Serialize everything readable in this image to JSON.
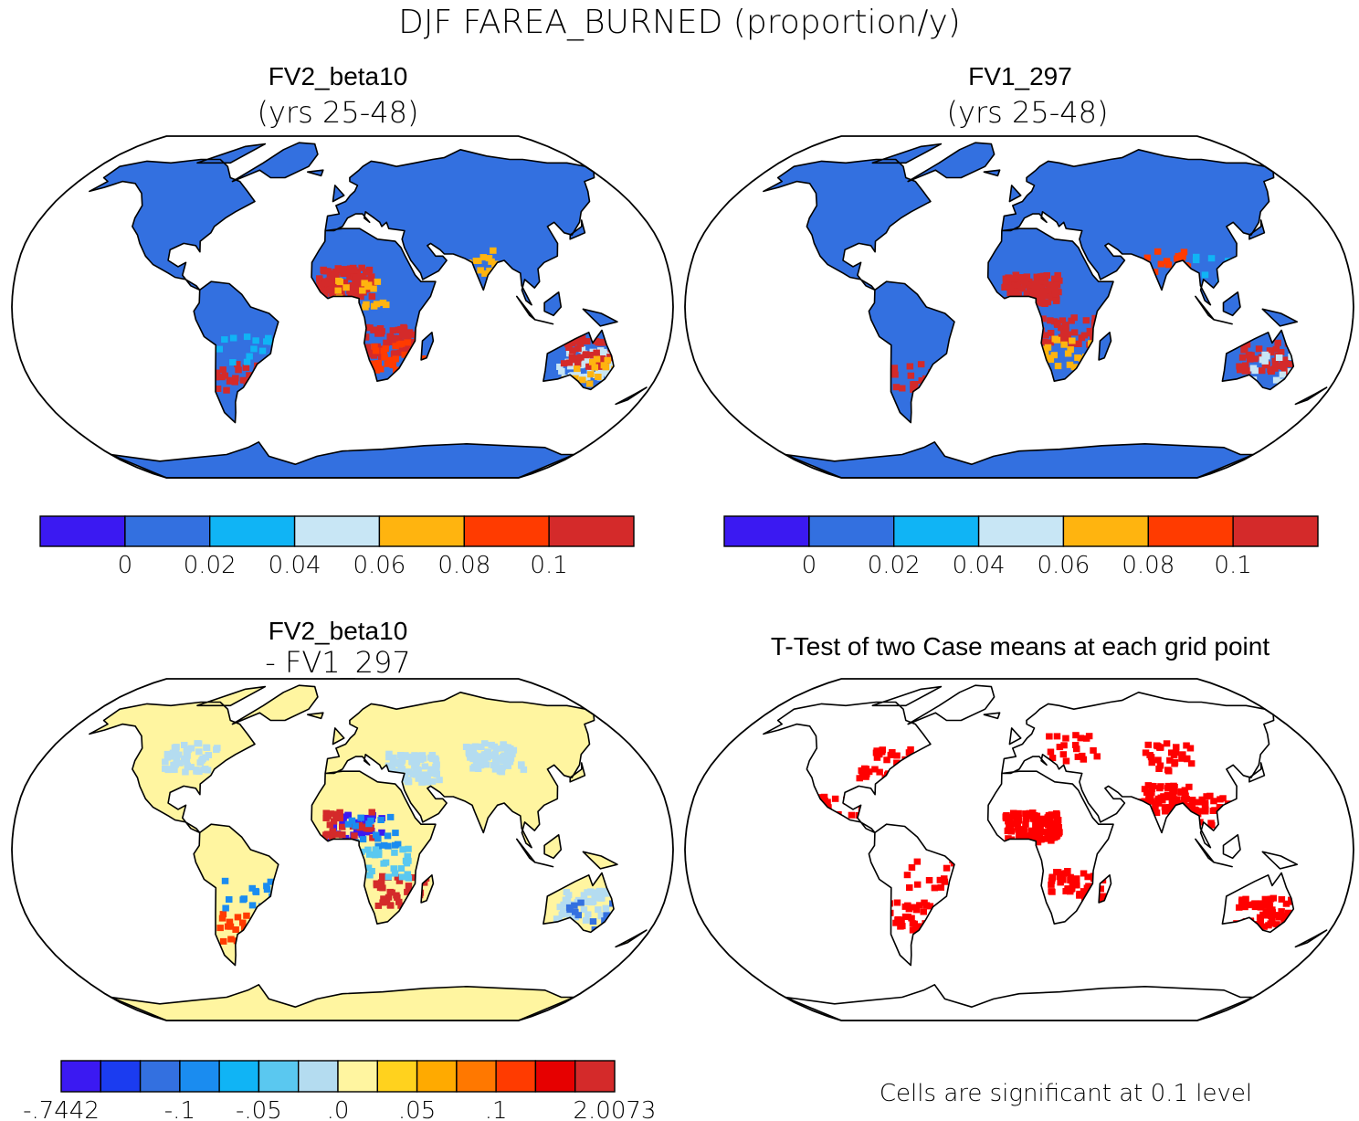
{
  "main_title": "DJF FAREA_BURNED (proportion/y)",
  "panels": [
    {
      "title": "FV2_beta10",
      "subtitle": "(yrs 25-48)",
      "base_color": "#3370e0",
      "colorbar": {
        "colors": [
          "#3b19f2",
          "#3370e0",
          "#10b4f5",
          "#c8e6f5",
          "#ffb40f",
          "#ff3b00",
          "#d42a2a"
        ],
        "labels": [
          "0",
          "0.02",
          "0.04",
          "0.06",
          "0.08",
          "0.1"
        ]
      },
      "patches": [
        {
          "lon": 0,
          "lat": 13,
          "c": "#d42a2a",
          "n": 110
        },
        {
          "lon": 25,
          "lat": -15,
          "c": "#d42a2a",
          "n": 60
        },
        {
          "lon": 30,
          "lat": -22,
          "c": "#ff3b00",
          "n": 30
        },
        {
          "lon": 135,
          "lat": -25,
          "c": "#c8e6f5",
          "n": 50
        },
        {
          "lon": 135,
          "lat": -20,
          "c": "#d42a2a",
          "n": 40
        },
        {
          "lon": 140,
          "lat": -30,
          "c": "#ffb40f",
          "n": 20
        },
        {
          "lon": -62,
          "lat": -32,
          "c": "#d42a2a",
          "n": 30
        },
        {
          "lon": -55,
          "lat": -18,
          "c": "#10b4f5",
          "n": 15
        },
        {
          "lon": 80,
          "lat": 22,
          "c": "#ffb40f",
          "n": 15
        },
        {
          "lon": 10,
          "lat": 8,
          "c": "#ffb40f",
          "n": 20
        }
      ]
    },
    {
      "title": "FV1_297",
      "subtitle": "(yrs 25-48)",
      "base_color": "#3370e0",
      "colorbar": {
        "colors": [
          "#3b19f2",
          "#3370e0",
          "#10b4f5",
          "#c8e6f5",
          "#ffb40f",
          "#ff3b00",
          "#d42a2a"
        ],
        "labels": [
          "0",
          "0.02",
          "0.04",
          "0.06",
          "0.08",
          "0.1"
        ]
      },
      "patches": [
        {
          "lon": 5,
          "lat": 10,
          "c": "#d42a2a",
          "n": 130
        },
        {
          "lon": 25,
          "lat": -10,
          "c": "#d42a2a",
          "n": 40
        },
        {
          "lon": 25,
          "lat": -20,
          "c": "#ffb40f",
          "n": 30
        },
        {
          "lon": 135,
          "lat": -22,
          "c": "#d42a2a",
          "n": 50
        },
        {
          "lon": 140,
          "lat": -28,
          "c": "#c8e6f5",
          "n": 20
        },
        {
          "lon": -60,
          "lat": -32,
          "c": "#d42a2a",
          "n": 25
        },
        {
          "lon": 80,
          "lat": 22,
          "c": "#ff3b00",
          "n": 20
        },
        {
          "lon": 100,
          "lat": 20,
          "c": "#10b4f5",
          "n": 10
        }
      ]
    },
    {
      "title": "FV2_beta10",
      "subtitle": "- FV1_297",
      "base_color": "#fff5a0",
      "colorbar": {
        "colors": [
          "#3b19f2",
          "#1b3cf0",
          "#3370e0",
          "#1a8cf0",
          "#10b4f5",
          "#5ac8f0",
          "#b4dcf0",
          "#fff5a0",
          "#ffd21e",
          "#ffaa00",
          "#ff7800",
          "#ff3b00",
          "#e60000",
          "#d42a2a"
        ],
        "labels": [
          "-.7442",
          "-.1",
          "-.05",
          ".0",
          ".05",
          ".1",
          "2.0073"
        ],
        "label_slots": [
          0,
          3,
          5,
          7,
          9,
          11,
          14
        ]
      },
      "patches": [
        {
          "lon": 5,
          "lat": 12,
          "c": "#3b19f2",
          "n": 30
        },
        {
          "lon": 0,
          "lat": 14,
          "c": "#d42a2a",
          "n": 30
        },
        {
          "lon": 15,
          "lat": 10,
          "c": "#1a8cf0",
          "n": 20
        },
        {
          "lon": 30,
          "lat": -18,
          "c": "#d42a2a",
          "n": 40
        },
        {
          "lon": 40,
          "lat": 40,
          "c": "#b4dcf0",
          "n": 80
        },
        {
          "lon": 90,
          "lat": 45,
          "c": "#b4dcf0",
          "n": 80
        },
        {
          "lon": -95,
          "lat": 45,
          "c": "#b4dcf0",
          "n": 50
        },
        {
          "lon": 135,
          "lat": -25,
          "c": "#b4dcf0",
          "n": 50
        },
        {
          "lon": 140,
          "lat": -30,
          "c": "#3370e0",
          "n": 15
        },
        {
          "lon": -60,
          "lat": -35,
          "c": "#ff3b00",
          "n": 25
        },
        {
          "lon": -55,
          "lat": -20,
          "c": "#1a8cf0",
          "n": 15
        },
        {
          "lon": 20,
          "lat": -5,
          "c": "#5ac8f0",
          "n": 30
        }
      ]
    },
    {
      "title": "T-Test of two Case means at each grid point",
      "subtitle": "",
      "base_color": "#ffffff",
      "note": "Cells are significant at 0.1 level",
      "sig_color": "#ff0000",
      "patches": [
        {
          "lon": 5,
          "lat": 12,
          "c": "#ff0000",
          "n": 120
        },
        {
          "lon": 30,
          "lat": -15,
          "c": "#ff0000",
          "n": 60
        },
        {
          "lon": 80,
          "lat": 25,
          "c": "#ff0000",
          "n": 70
        },
        {
          "lon": 100,
          "lat": 20,
          "c": "#ff0000",
          "n": 35
        },
        {
          "lon": 135,
          "lat": -28,
          "c": "#ff0000",
          "n": 60
        },
        {
          "lon": -80,
          "lat": 42,
          "c": "#ff0000",
          "n": 40
        },
        {
          "lon": -100,
          "lat": 20,
          "c": "#ff0000",
          "n": 20
        },
        {
          "lon": -60,
          "lat": -30,
          "c": "#ff0000",
          "n": 30
        },
        {
          "lon": 30,
          "lat": 50,
          "c": "#ff0000",
          "n": 20
        },
        {
          "lon": 90,
          "lat": 45,
          "c": "#ff0000",
          "n": 30
        },
        {
          "lon": -50,
          "lat": -10,
          "c": "#ff0000",
          "n": 15
        }
      ]
    }
  ],
  "continents": [
    [
      [
        -165,
        68
      ],
      [
        -150,
        71
      ],
      [
        -130,
        70
      ],
      [
        -110,
        72
      ],
      [
        -95,
        72
      ],
      [
        -85,
        68
      ],
      [
        -78,
        62
      ],
      [
        -70,
        60
      ],
      [
        -62,
        55
      ],
      [
        -55,
        50
      ],
      [
        -65,
        45
      ],
      [
        -70,
        42
      ],
      [
        -75,
        38
      ],
      [
        -76,
        35
      ],
      [
        -81,
        31
      ],
      [
        -80,
        26
      ],
      [
        -83,
        29
      ],
      [
        -90,
        30
      ],
      [
        -97,
        27
      ],
      [
        -97,
        22
      ],
      [
        -91,
        19
      ],
      [
        -87,
        21
      ],
      [
        -88,
        15
      ],
      [
        -83,
        10
      ],
      [
        -78,
        8
      ],
      [
        -80,
        10
      ],
      [
        -86,
        13
      ],
      [
        -92,
        14
      ],
      [
        -96,
        16
      ],
      [
        -105,
        20
      ],
      [
        -110,
        24
      ],
      [
        -115,
        30
      ],
      [
        -118,
        34
      ],
      [
        -123,
        38
      ],
      [
        -124,
        42
      ],
      [
        -124,
        48
      ],
      [
        -130,
        54
      ],
      [
        -140,
        59
      ],
      [
        -150,
        60
      ],
      [
        -158,
        57
      ],
      [
        -165,
        55
      ],
      [
        -160,
        60
      ],
      [
        -166,
        62
      ],
      [
        -165,
        68
      ]
    ],
    [
      [
        -75,
        60
      ],
      [
        -60,
        70
      ],
      [
        -50,
        78
      ],
      [
        -40,
        83
      ],
      [
        -25,
        82
      ],
      [
        -20,
        75
      ],
      [
        -25,
        68
      ],
      [
        -40,
        62
      ],
      [
        -50,
        62
      ],
      [
        -60,
        66
      ],
      [
        -75,
        60
      ]
    ],
    [
      [
        -78,
        8
      ],
      [
        -72,
        12
      ],
      [
        -62,
        11
      ],
      [
        -55,
        6
      ],
      [
        -50,
        0
      ],
      [
        -40,
        -3
      ],
      [
        -35,
        -7
      ],
      [
        -38,
        -15
      ],
      [
        -40,
        -22
      ],
      [
        -48,
        -27
      ],
      [
        -53,
        -33
      ],
      [
        -58,
        -38
      ],
      [
        -62,
        -40
      ],
      [
        -65,
        -45
      ],
      [
        -67,
        -50
      ],
      [
        -70,
        -55
      ],
      [
        -74,
        -50
      ],
      [
        -75,
        -40
      ],
      [
        -72,
        -30
      ],
      [
        -70,
        -18
      ],
      [
        -76,
        -14
      ],
      [
        -80,
        -6
      ],
      [
        -81,
        -2
      ],
      [
        -78,
        2
      ],
      [
        -78,
        8
      ]
    ],
    [
      [
        -10,
        36
      ],
      [
        0,
        37
      ],
      [
        10,
        37
      ],
      [
        20,
        32
      ],
      [
        30,
        31
      ],
      [
        33,
        28
      ],
      [
        35,
        24
      ],
      [
        40,
        15
      ],
      [
        43,
        12
      ],
      [
        51,
        12
      ],
      [
        48,
        5
      ],
      [
        42,
        -2
      ],
      [
        40,
        -10
      ],
      [
        40,
        -16
      ],
      [
        35,
        -24
      ],
      [
        32,
        -29
      ],
      [
        26,
        -34
      ],
      [
        20,
        -35
      ],
      [
        18,
        -30
      ],
      [
        15,
        -25
      ],
      [
        12,
        -17
      ],
      [
        13,
        -10
      ],
      [
        12,
        -5
      ],
      [
        9,
        2
      ],
      [
        9,
        4
      ],
      [
        5,
        5
      ],
      [
        -5,
        5
      ],
      [
        -8,
        4
      ],
      [
        -12,
        7
      ],
      [
        -17,
        14
      ],
      [
        -17,
        21
      ],
      [
        -13,
        27
      ],
      [
        -10,
        31
      ],
      [
        -10,
        36
      ]
    ],
    [
      [
        -10,
        36
      ],
      [
        -9,
        43
      ],
      [
        -2,
        44
      ],
      [
        -4,
        48
      ],
      [
        2,
        50
      ],
      [
        5,
        53
      ],
      [
        8,
        55
      ],
      [
        10,
        58
      ],
      [
        5,
        60
      ],
      [
        5,
        62
      ],
      [
        12,
        66
      ],
      [
        15,
        68
      ],
      [
        22,
        71
      ],
      [
        30,
        70
      ],
      [
        40,
        68
      ],
      [
        55,
        70
      ],
      [
        70,
        72
      ],
      [
        80,
        73
      ],
      [
        100,
        78
      ],
      [
        115,
        74
      ],
      [
        130,
        72
      ],
      [
        140,
        72
      ],
      [
        155,
        70
      ],
      [
        170,
        70
      ],
      [
        180,
        68
      ],
      [
        180,
        65
      ],
      [
        175,
        62
      ],
      [
        165,
        60
      ],
      [
        160,
        55
      ],
      [
        155,
        50
      ],
      [
        145,
        45
      ],
      [
        140,
        40
      ],
      [
        132,
        34
      ],
      [
        128,
        35
      ],
      [
        125,
        40
      ],
      [
        120,
        38
      ],
      [
        122,
        30
      ],
      [
        120,
        24
      ],
      [
        112,
        21
      ],
      [
        108,
        18
      ],
      [
        108,
        12
      ],
      [
        105,
        9
      ],
      [
        100,
        13
      ],
      [
        98,
        8
      ],
      [
        100,
        3
      ],
      [
        103,
        1
      ],
      [
        98,
        10
      ],
      [
        98,
        16
      ],
      [
        94,
        18
      ],
      [
        90,
        22
      ],
      [
        86,
        21
      ],
      [
        80,
        15
      ],
      [
        77,
        8
      ],
      [
        73,
        18
      ],
      [
        72,
        21
      ],
      [
        68,
        23
      ],
      [
        62,
        25
      ],
      [
        57,
        25
      ],
      [
        55,
        27
      ],
      [
        50,
        30
      ],
      [
        48,
        29
      ],
      [
        52,
        24
      ],
      [
        56,
        24
      ],
      [
        58,
        22
      ],
      [
        53,
        17
      ],
      [
        44,
        13
      ],
      [
        43,
        16
      ],
      [
        38,
        22
      ],
      [
        35,
        28
      ],
      [
        34,
        32
      ],
      [
        36,
        36
      ],
      [
        27,
        37
      ],
      [
        26,
        40
      ],
      [
        23,
        38
      ],
      [
        22,
        40
      ],
      [
        19,
        42
      ],
      [
        14,
        45
      ],
      [
        13,
        42
      ],
      [
        16,
        40
      ],
      [
        12,
        44
      ],
      [
        8,
        44
      ],
      [
        3,
        42
      ],
      [
        0,
        38
      ],
      [
        -5,
        36
      ],
      [
        -10,
        36
      ]
    ],
    [
      [
        114,
        -22
      ],
      [
        120,
        -19
      ],
      [
        128,
        -15
      ],
      [
        135,
        -12
      ],
      [
        138,
        -17
      ],
      [
        142,
        -11
      ],
      [
        146,
        -18
      ],
      [
        150,
        -23
      ],
      [
        153,
        -28
      ],
      [
        151,
        -34
      ],
      [
        146,
        -39
      ],
      [
        141,
        -38
      ],
      [
        136,
        -35
      ],
      [
        130,
        -32
      ],
      [
        124,
        -34
      ],
      [
        116,
        -35
      ],
      [
        115,
        -30
      ],
      [
        114,
        -22
      ]
    ],
    [
      [
        -180,
        -72
      ],
      [
        -150,
        -76
      ],
      [
        -120,
        -74
      ],
      [
        -90,
        -72
      ],
      [
        -70,
        -68
      ],
      [
        -60,
        -65
      ],
      [
        -58,
        -73
      ],
      [
        -40,
        -78
      ],
      [
        -20,
        -73
      ],
      [
        0,
        -70
      ],
      [
        30,
        -69
      ],
      [
        60,
        -67
      ],
      [
        90,
        -66
      ],
      [
        120,
        -67
      ],
      [
        150,
        -68
      ],
      [
        170,
        -72
      ],
      [
        180,
        -72
      ],
      [
        180,
        -90
      ],
      [
        -180,
        -90
      ],
      [
        -180,
        -72
      ]
    ],
    [
      [
        44,
        -25
      ],
      [
        47,
        -24
      ],
      [
        50,
        -16
      ],
      [
        49,
        -12
      ],
      [
        44,
        -16
      ],
      [
        44,
        -25
      ]
    ],
    [
      [
        95,
        5
      ],
      [
        105,
        -6
      ],
      [
        102,
        -4
      ],
      [
        95,
        5
      ]
    ],
    [
      [
        105,
        -6
      ],
      [
        115,
        -8
      ],
      [
        110,
        -7
      ],
      [
        105,
        -6
      ]
    ],
    [
      [
        110,
        2
      ],
      [
        118,
        7
      ],
      [
        119,
        0
      ],
      [
        115,
        -4
      ],
      [
        110,
        -2
      ],
      [
        110,
        2
      ]
    ],
    [
      [
        131,
        -1
      ],
      [
        141,
        -3
      ],
      [
        150,
        -7
      ],
      [
        141,
        -9
      ],
      [
        131,
        -1
      ]
    ],
    [
      [
        130,
        32
      ],
      [
        140,
        35
      ],
      [
        142,
        41
      ],
      [
        140,
        38
      ],
      [
        131,
        34
      ],
      [
        130,
        32
      ]
    ],
    [
      [
        -6,
        50
      ],
      [
        -5,
        58
      ],
      [
        1,
        53
      ],
      [
        -6,
        50
      ]
    ],
    [
      [
        -25,
        65
      ],
      [
        -14,
        66
      ],
      [
        -15,
        63
      ],
      [
        -25,
        65
      ]
    ],
    [
      [
        167,
        -46
      ],
      [
        174,
        -41
      ],
      [
        178,
        -38
      ],
      [
        172,
        -44
      ],
      [
        167,
        -46
      ]
    ],
    [
      [
        -110,
        70
      ],
      [
        -85,
        80
      ],
      [
        -70,
        82
      ],
      [
        -85,
        70
      ],
      [
        -110,
        70
      ]
    ]
  ]
}
